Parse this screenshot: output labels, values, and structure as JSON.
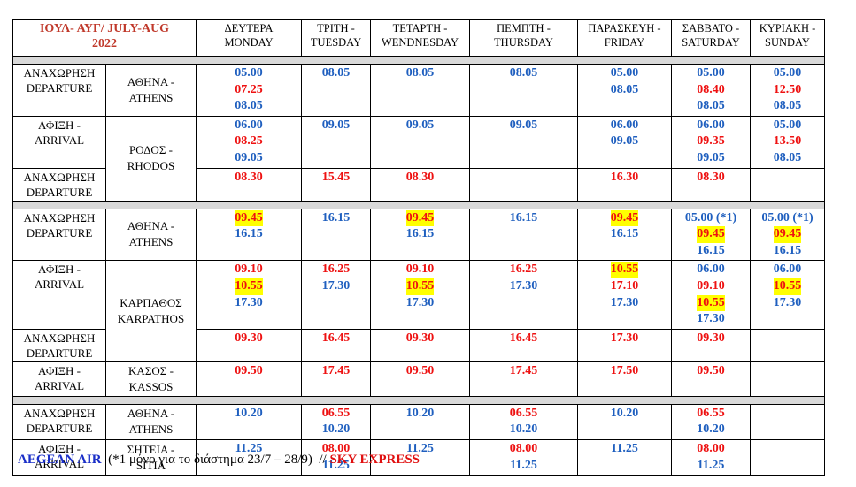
{
  "header": {
    "title": [
      "ΙΟΥΛ- ΑΥΓ/ JULY-AUG",
      "2022"
    ],
    "title_color": "#c0392b",
    "days": [
      [
        "ΔΕΥΤΕΡΑ",
        "MONDAY"
      ],
      [
        "ΤΡΙΤΗ -",
        "TUESDAY"
      ],
      [
        "ΤΕΤΑΡΤΗ -",
        "WENDNESDAY"
      ],
      [
        "ΠΕΜΠΤΗ -",
        "THURSDAY"
      ],
      [
        "ΠΑΡΑΣΚΕΥΗ -",
        "FRIDAY"
      ],
      [
        "ΣΑΒΒΑΤΟ -",
        "SATURDAY"
      ],
      [
        "ΚΥΡΙΑΚΗ -",
        "SUNDAY"
      ]
    ]
  },
  "groups": [
    {
      "rows": [
        {
          "label": [
            "ΑΝΑΧΩΡΗΣΗ",
            "DEPARTURE"
          ],
          "city": [
            "ΑΘΗΝΑ -",
            "ATHENS"
          ],
          "cells": [
            [
              {
                "text": "05.00",
                "color": "#1f5fbf"
              },
              {
                "text": "07.25",
                "color": "#ee1111"
              },
              {
                "text": "08.05",
                "color": "#1f5fbf"
              }
            ],
            [
              {
                "text": "08.05",
                "color": "#1f5fbf"
              }
            ],
            [
              {
                "text": "08.05",
                "color": "#1f5fbf"
              }
            ],
            [
              {
                "text": "08.05",
                "color": "#1f5fbf"
              }
            ],
            [
              {
                "text": "05.00",
                "color": "#1f5fbf"
              },
              {
                "text": "08.05",
                "color": "#1f5fbf"
              }
            ],
            [
              {
                "text": "05.00",
                "color": "#1f5fbf"
              },
              {
                "text": "08.40",
                "color": "#ee1111"
              },
              {
                "text": "08.05",
                "color": "#1f5fbf"
              }
            ],
            [
              {
                "text": "05.00",
                "color": "#1f5fbf"
              },
              {
                "text": "12.50",
                "color": "#ee1111"
              },
              {
                "text": "08.05",
                "color": "#1f5fbf"
              }
            ]
          ]
        },
        {
          "label": [
            "ΑΦΙΞΗ -",
            "ARRIVAL"
          ],
          "city": [
            "ΡΟΔΟΣ -",
            "RHODOS"
          ],
          "cells": [
            [
              {
                "text": "06.00",
                "color": "#1f5fbf"
              },
              {
                "text": "08.25",
                "color": "#ee1111"
              },
              {
                "text": "09.05",
                "color": "#1f5fbf"
              }
            ],
            [
              {
                "text": "09.05",
                "color": "#1f5fbf"
              }
            ],
            [
              {
                "text": "09.05",
                "color": "#1f5fbf"
              }
            ],
            [
              {
                "text": "09.05",
                "color": "#1f5fbf"
              }
            ],
            [
              {
                "text": "06.00",
                "color": "#1f5fbf"
              },
              {
                "text": "09.05",
                "color": "#1f5fbf"
              }
            ],
            [
              {
                "text": "06.00",
                "color": "#1f5fbf"
              },
              {
                "text": "09.35",
                "color": "#ee1111"
              },
              {
                "text": "09.05",
                "color": "#1f5fbf"
              }
            ],
            [
              {
                "text": "05.00",
                "color": "#1f5fbf"
              },
              {
                "text": "13.50",
                "color": "#ee1111"
              },
              {
                "text": "08.05",
                "color": "#1f5fbf"
              }
            ]
          ]
        },
        {
          "label": [
            "ΑΝΑΧΩΡΗΣΗ",
            "DEPARTURE"
          ],
          "cells": [
            [
              {
                "text": "08.30",
                "color": "#ee1111"
              }
            ],
            [
              {
                "text": "15.45",
                "color": "#ee1111"
              }
            ],
            [
              {
                "text": "08.30",
                "color": "#ee1111"
              }
            ],
            [],
            [
              {
                "text": "16.30",
                "color": "#ee1111"
              }
            ],
            [
              {
                "text": "08.30",
                "color": "#ee1111"
              }
            ],
            []
          ]
        }
      ]
    },
    {
      "rows": [
        {
          "label": [
            "ΑΝΑΧΩΡΗΣΗ",
            "DEPARTURE"
          ],
          "city": [
            "ΑΘΗΝΑ -",
            "ATHENS"
          ],
          "cells": [
            [
              {
                "text": "09.45",
                "color": "#ee1111",
                "highlight": true
              },
              {
                "text": "16.15",
                "color": "#1f5fbf"
              }
            ],
            [
              {
                "text": "16.15",
                "color": "#1f5fbf"
              }
            ],
            [
              {
                "text": "09.45",
                "color": "#ee1111",
                "highlight": true
              },
              {
                "text": "16.15",
                "color": "#1f5fbf"
              }
            ],
            [
              {
                "text": "16.15",
                "color": "#1f5fbf"
              }
            ],
            [
              {
                "text": "09.45",
                "color": "#ee1111",
                "highlight": true
              },
              {
                "text": "16.15",
                "color": "#1f5fbf"
              }
            ],
            [
              {
                "text": "05.00 (*1)",
                "color": "#1f5fbf"
              },
              {
                "text": "09.45",
                "color": "#ee1111",
                "highlight": true
              },
              {
                "text": "16.15",
                "color": "#1f5fbf"
              }
            ],
            [
              {
                "text": "05.00 (*1)",
                "color": "#1f5fbf"
              },
              {
                "text": "09.45",
                "color": "#ee1111",
                "highlight": true
              },
              {
                "text": "16.15",
                "color": "#1f5fbf"
              }
            ]
          ]
        },
        {
          "label": [
            "ΑΦΙΞΗ -",
            "ARRIVAL"
          ],
          "city": [
            "ΚΑΡΠΑΘΟΣ",
            "KARPATHOS"
          ],
          "cells": [
            [
              {
                "text": "09.10",
                "color": "#ee1111"
              },
              {
                "text": "10.55",
                "color": "#ee1111",
                "highlight": true
              },
              {
                "text": "17.30",
                "color": "#1f5fbf"
              }
            ],
            [
              {
                "text": "16.25",
                "color": "#ee1111"
              },
              {
                "text": "17.30",
                "color": "#1f5fbf"
              }
            ],
            [
              {
                "text": "09.10",
                "color": "#ee1111"
              },
              {
                "text": "10.55",
                "color": "#ee1111",
                "highlight": true
              },
              {
                "text": "17.30",
                "color": "#1f5fbf"
              }
            ],
            [
              {
                "text": "16.25",
                "color": "#ee1111"
              },
              {
                "text": "17.30",
                "color": "#1f5fbf"
              }
            ],
            [
              {
                "text": "10.55",
                "color": "#ee1111",
                "highlight": true
              },
              {
                "text": "17.10",
                "color": "#ee1111"
              },
              {
                "text": "17.30",
                "color": "#1f5fbf"
              }
            ],
            [
              {
                "text": "06.00",
                "color": "#1f5fbf"
              },
              {
                "text": "09.10",
                "color": "#ee1111"
              },
              {
                "text": "10.55",
                "color": "#ee1111",
                "highlight": true
              },
              {
                "text": "17.30",
                "color": "#1f5fbf"
              }
            ],
            [
              {
                "text": "06.00",
                "color": "#1f5fbf"
              },
              {
                "text": "10.55",
                "color": "#ee1111",
                "highlight": true
              },
              {
                "text": "17.30",
                "color": "#1f5fbf"
              }
            ]
          ]
        },
        {
          "label": [
            "ΑΝΑΧΩΡΗΣΗ",
            "DEPARTURE"
          ],
          "cells": [
            [
              {
                "text": "09.30",
                "color": "#ee1111"
              }
            ],
            [
              {
                "text": "16.45",
                "color": "#ee1111"
              }
            ],
            [
              {
                "text": "09.30",
                "color": "#ee1111"
              }
            ],
            [
              {
                "text": "16.45",
                "color": "#ee1111"
              }
            ],
            [
              {
                "text": "17.30",
                "color": "#ee1111"
              }
            ],
            [
              {
                "text": "09.30",
                "color": "#ee1111"
              }
            ],
            []
          ]
        },
        {
          "label": [
            "ΑΦΙΞΗ -",
            "ARRIVAL"
          ],
          "city": [
            "ΚΑΣΟΣ -",
            "KASSOS"
          ],
          "cells": [
            [
              {
                "text": "09.50",
                "color": "#ee1111"
              }
            ],
            [
              {
                "text": "17.45",
                "color": "#ee1111"
              }
            ],
            [
              {
                "text": "09.50",
                "color": "#ee1111"
              }
            ],
            [
              {
                "text": "17.45",
                "color": "#ee1111"
              }
            ],
            [
              {
                "text": "17.50",
                "color": "#ee1111"
              }
            ],
            [
              {
                "text": "09.50",
                "color": "#ee1111"
              }
            ],
            []
          ]
        }
      ]
    },
    {
      "rows": [
        {
          "label": [
            "ΑΝΑΧΩΡΗΣΗ",
            "DEPARTURE"
          ],
          "city": [
            "ΑΘΗΝΑ -",
            "ATHENS"
          ],
          "cells": [
            [
              {
                "text": "10.20",
                "color": "#1f5fbf"
              }
            ],
            [
              {
                "text": "06.55",
                "color": "#ee1111"
              },
              {
                "text": "10.20",
                "color": "#1f5fbf"
              }
            ],
            [
              {
                "text": "10.20",
                "color": "#1f5fbf"
              }
            ],
            [
              {
                "text": "06.55",
                "color": "#ee1111"
              },
              {
                "text": "10.20",
                "color": "#1f5fbf"
              }
            ],
            [
              {
                "text": "10.20",
                "color": "#1f5fbf"
              }
            ],
            [
              {
                "text": "06.55",
                "color": "#ee1111"
              },
              {
                "text": "10.20",
                "color": "#1f5fbf"
              }
            ],
            []
          ]
        },
        {
          "label": [
            "ΑΦΙΞΗ -",
            "ARRIVAL"
          ],
          "city": [
            "ΣΗΤΕΙΑ -",
            "SITIA"
          ],
          "cells": [
            [
              {
                "text": "11.25",
                "color": "#1f5fbf"
              }
            ],
            [
              {
                "text": "08.00",
                "color": "#ee1111"
              },
              {
                "text": "11.25",
                "color": "#1f5fbf"
              }
            ],
            [
              {
                "text": "11.25",
                "color": "#1f5fbf"
              }
            ],
            [
              {
                "text": "08.00",
                "color": "#ee1111"
              },
              {
                "text": "11.25",
                "color": "#1f5fbf"
              }
            ],
            [
              {
                "text": "11.25",
                "color": "#1f5fbf"
              }
            ],
            [
              {
                "text": "08.00",
                "color": "#ee1111"
              },
              {
                "text": "11.25",
                "color": "#1f5fbf"
              }
            ],
            []
          ]
        }
      ]
    }
  ],
  "footer": {
    "airline1": {
      "text": "AEGEAN AIR",
      "color": "#1a2fc8"
    },
    "note": "(*1 μόνο για το διάστημα 23/7 – 28/9)  //",
    "airline2": {
      "text": "SKY EXPRESS",
      "color": "#e01010"
    }
  }
}
